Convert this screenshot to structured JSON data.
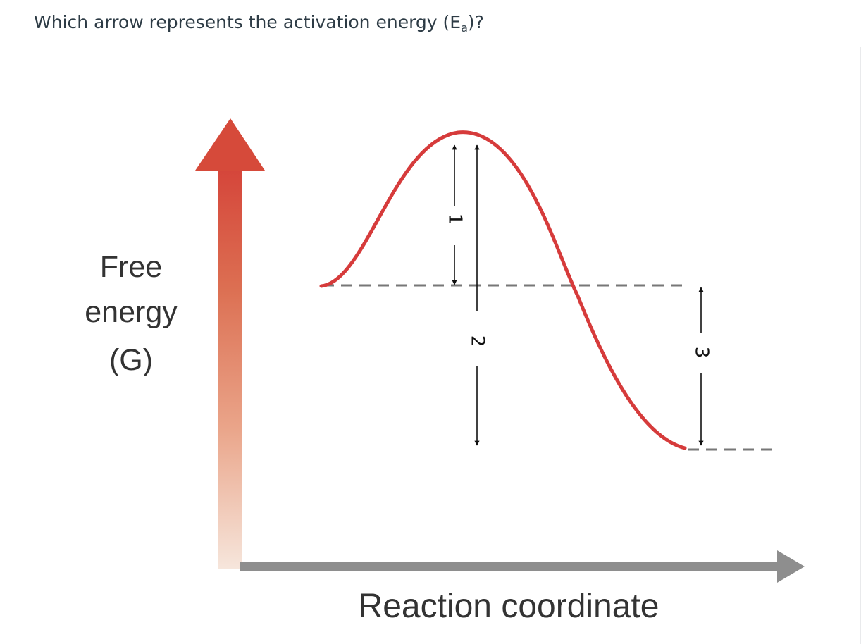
{
  "question": {
    "prefix": "Which arrow represents the activation energy (E",
    "subscript": "a",
    "suffix": ")?"
  },
  "diagram": {
    "y_axis_label": [
      "Free",
      "energy",
      "(G)"
    ],
    "x_axis_label": "Reaction coordinate",
    "arrow_labels": [
      "1",
      "2",
      "3"
    ],
    "colors": {
      "curve": "#d63b3b",
      "y_axis_top": "#d94a3a",
      "y_axis_bottom": "#f5e3d9",
      "x_axis": "#8c8c8c",
      "dashed_lines": "#777777",
      "arrows": "#111111",
      "text": "#333333"
    }
  }
}
